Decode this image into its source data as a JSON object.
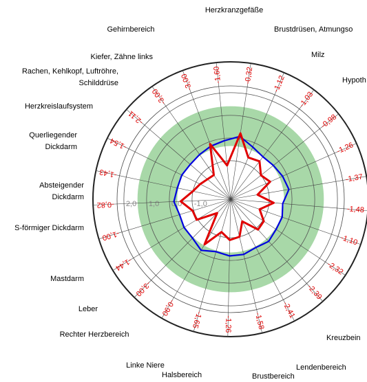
{
  "chart_data": {
    "type": "radar",
    "categories": [
      "Herzkranzgefäße",
      "Brustdrüsen, Atmungso",
      "Milz",
      "Hypoth",
      null,
      null,
      null,
      null,
      null,
      null,
      "Kreuzbein",
      "Lendenbereich",
      "Brustbereich",
      "Halsbereich",
      "Linke Niere",
      "Rechter Herzbereich",
      "Leber",
      "Mastdarm",
      "S-förmiger Dickdarm",
      "Absteigender\nDickdarm",
      "Querliegender\nDickdarm",
      "Herzkreislaufsystem",
      "Rachen, Kehlkopf, Luftröhre,\nSchilddrüse",
      "Kiefer, Zähne links",
      "Gehirnbereich"
    ],
    "axis_values": [
      -1.6,
      -0.32,
      -1.12,
      -1.03,
      -0.98,
      -1.26,
      -1.37,
      -1.48,
      -1.1,
      -2.32,
      -2.39,
      -2.41,
      -1.58,
      -1.26,
      -1.65,
      -0.9,
      -3.0,
      -1.44,
      -1.0,
      -0.82,
      -1.43,
      -1.54,
      -2.11,
      -3.0,
      -3.0
    ],
    "axis_value_labels": [
      "-1,60",
      "-0,32",
      "-1,12",
      "-1,03",
      "-0,98",
      "-1,26",
      "-1,37",
      "-1,48",
      "-1,10",
      "-2,32",
      "-2,39",
      "-2,41",
      "-1,58",
      "-1,26",
      "-1,65",
      "-0,90",
      "-3,00",
      "-1,44",
      "-1,00",
      "-0,82",
      "-1,43",
      "-1,54",
      "-2,11",
      "-3,00",
      "-3,00"
    ],
    "series": [
      {
        "color": "#0000e0",
        "values": [
          -0.1,
          0.1,
          -0.2,
          -0.35,
          -0.3,
          -0.2,
          -0.1,
          -0.4,
          -0.3,
          -0.3,
          -0.2,
          -0.3,
          -0.2,
          -0.2,
          -0.3,
          -0.1,
          -0.3,
          -0.3,
          -0.35,
          -0.2,
          -0.3,
          -0.3,
          -0.35,
          -0.3,
          -0.2
        ]
      },
      {
        "color": "#e00000",
        "values": [
          -1.2,
          0.24,
          -0.7,
          -0.6,
          -1.0,
          -0.8,
          -1.5,
          -0.8,
          -1.35,
          -0.95,
          -0.9,
          -1.6,
          -1.0,
          -0.9,
          -1.2,
          -0.4,
          -1.85,
          -0.95,
          -0.95,
          -0.5,
          -1.0,
          -1.2,
          -1.35,
          -1.4,
          -0.1
        ]
      }
    ],
    "rlim": [
      -2.7,
      3.3
    ],
    "rticks": [
      {
        "value": 2,
        "label": "2,0"
      },
      {
        "value": 1,
        "label": "1,0"
      },
      {
        "value": 0,
        "label": "0,0"
      },
      {
        "value": -1,
        "label": "-1,0"
      }
    ],
    "band": [
      -0.35,
      1.4
    ],
    "band_color": "#a8d8a8"
  }
}
